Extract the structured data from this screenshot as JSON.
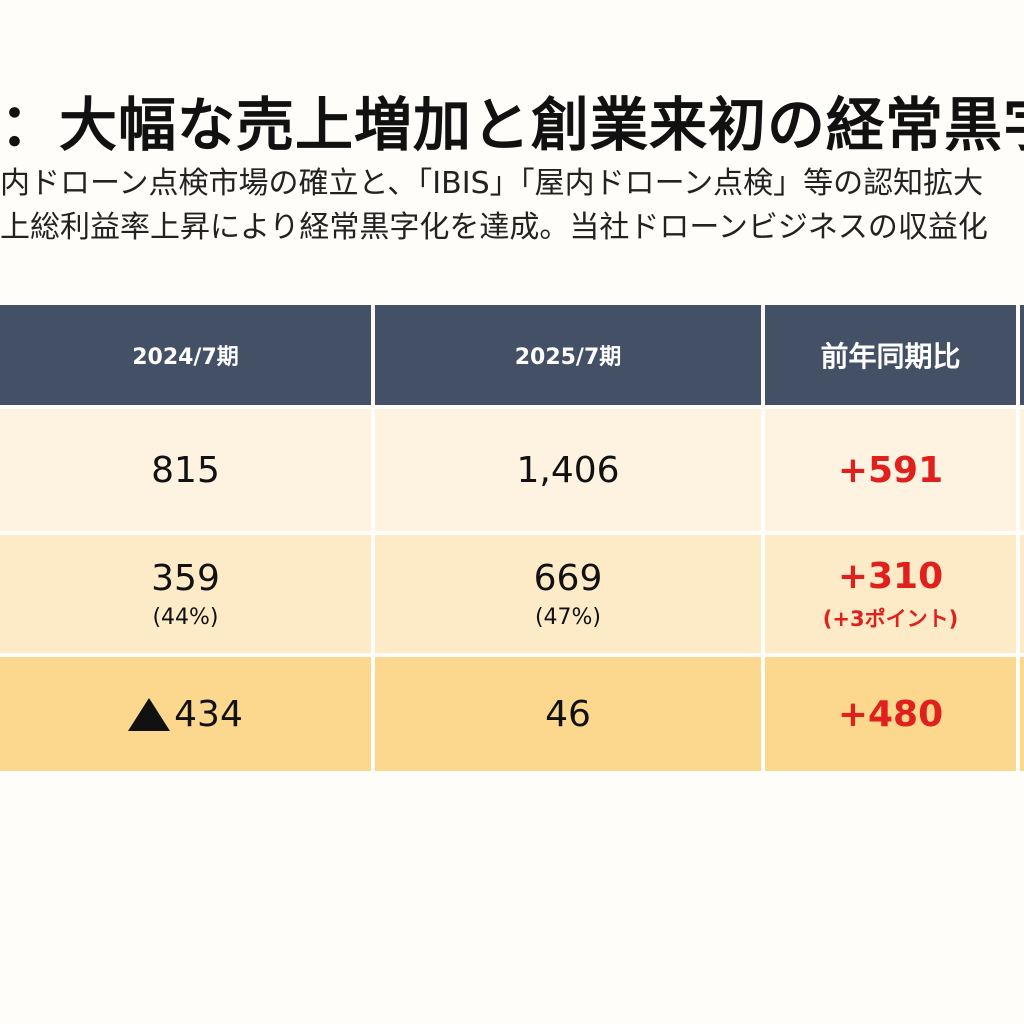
{
  "title": "：大幅な売上増加と創業来初の経常黒字",
  "lead": [
    "内ドローン点検市場の確立と、「IBIS」「屋内ドローン点検」等の認知拡大",
    "上総利益率上昇により経常黒字化を達成。当社ドローンビジネスの収益化"
  ],
  "table": {
    "headers": [
      "2024/7期",
      "2025/7期",
      "前年同期比"
    ],
    "rows": [
      {
        "fy2024": "815",
        "fy2025": "1,406",
        "diff": "+591"
      },
      {
        "fy2024": "359",
        "fy2024_sub": "(44%)",
        "fy2025": "669",
        "fy2025_sub": "(47%)",
        "diff": "+310",
        "diff_sub": "(+3ポイント)"
      },
      {
        "fy2024": "434",
        "fy2024_negative": true,
        "fy2025": "46",
        "diff": "+480"
      }
    ]
  },
  "colors": {
    "header_bg": "#435066",
    "row1_bg": "#fdf3e0",
    "row2_bg": "#fdebc8",
    "row3_bg": "#fcd88e",
    "accent_red": "#e0201c"
  }
}
